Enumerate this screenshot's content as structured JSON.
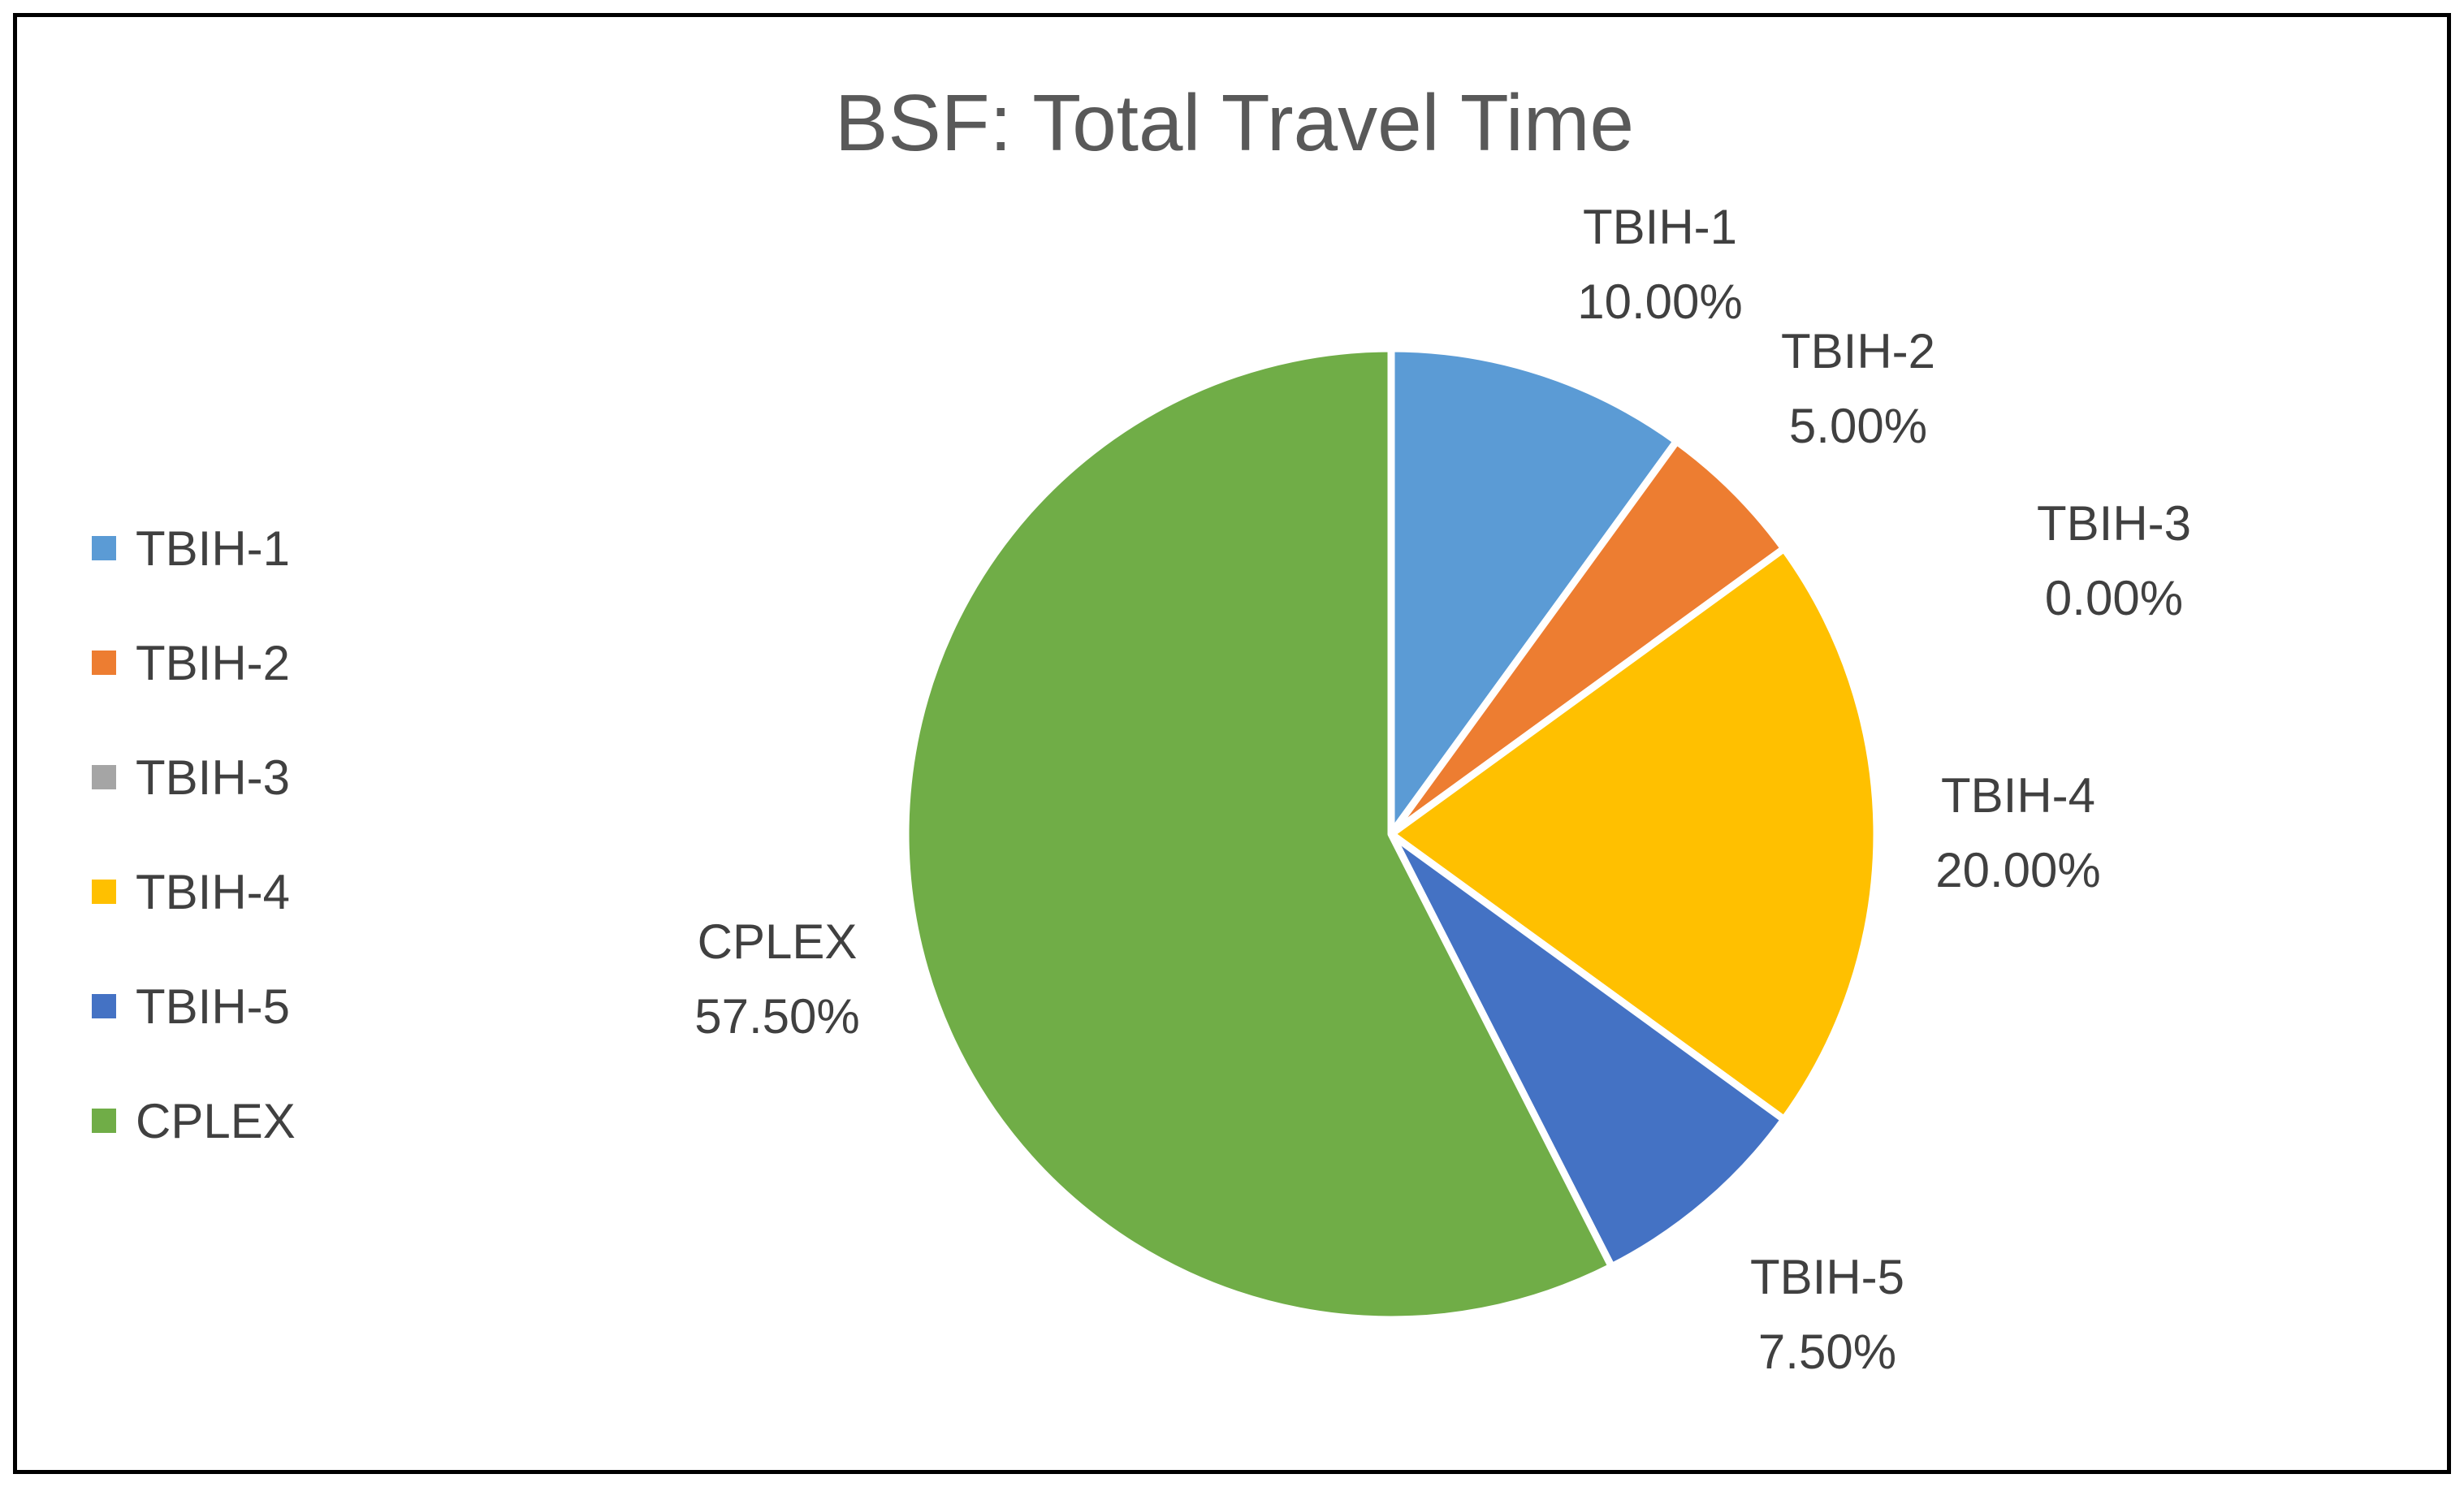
{
  "chart_data": {
    "type": "pie",
    "title": "BSF: Total Travel Time",
    "categories": [
      "TBIH-1",
      "TBIH-2",
      "TBIH-3",
      "TBIH-4",
      "TBIH-5",
      "CPLEX"
    ],
    "values": [
      10.0,
      5.0,
      0.0,
      20.0,
      7.5,
      57.5
    ],
    "data_labels": [
      "10.00%",
      "5.00%",
      "0.00%",
      "20.00%",
      "7.50%",
      "57.50%"
    ],
    "colors": [
      "#5B9BD5",
      "#ED7D31",
      "#A5A5A5",
      "#FFC000",
      "#4472C4",
      "#70AD47"
    ],
    "legend_position": "left",
    "start_angle": "12 o'clock, clockwise"
  }
}
